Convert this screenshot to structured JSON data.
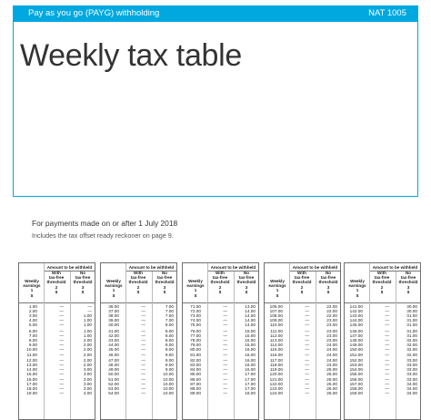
{
  "header": {
    "title": "Pay as you go (PAYG) withholding",
    "code": "NAT 1005"
  },
  "document": {
    "title": "Weekly tax table",
    "payments_note": "For payments made on or after 1 July 2018",
    "reckoner_note": "Includes the tax offset ready reckoner on page 9."
  },
  "table_header": {
    "amount_withheld": "Amount to be withheld",
    "col1": [
      "Weekly",
      "earnings",
      "1",
      "$"
    ],
    "col2": [
      "With",
      "tax-free",
      "threshold",
      "2",
      "$"
    ],
    "col3": [
      "No",
      "tax-free",
      "threshold",
      "3",
      "$"
    ]
  },
  "tables": [
    {
      "rows": [
        [
          "1.00",
          "—",
          "—"
        ],
        [
          "2.00",
          "—",
          "—"
        ],
        [
          "3.00",
          "—",
          "1.00"
        ],
        [
          "4.00",
          "—",
          "1.00"
        ],
        [
          "5.00",
          "—",
          "1.00"
        ],
        [
          "6.00",
          "—",
          "1.00"
        ],
        [
          "7.00",
          "—",
          "1.00"
        ],
        [
          "8.00",
          "—",
          "2.00"
        ],
        [
          "9.00",
          "—",
          "2.00"
        ],
        [
          "10.00",
          "—",
          "2.00"
        ],
        [
          "11.00",
          "—",
          "2.00"
        ],
        [
          "12.00",
          "—",
          "2.00"
        ],
        [
          "13.00",
          "—",
          "2.00"
        ],
        [
          "14.00",
          "—",
          "3.00"
        ],
        [
          "15.00",
          "—",
          "3.00"
        ],
        [
          "16.00",
          "—",
          "3.00"
        ],
        [
          "17.00",
          "—",
          "3.00"
        ],
        [
          "18.00",
          "—",
          "3.00"
        ],
        [
          "19.00",
          "—",
          "4.00"
        ]
      ]
    },
    {
      "rows": [
        [
          "36.00",
          "—",
          "7.00"
        ],
        [
          "37.00",
          "—",
          "7.00"
        ],
        [
          "38.00",
          "—",
          "7.00"
        ],
        [
          "39.00",
          "—",
          "7.00"
        ],
        [
          "40.00",
          "—",
          "8.00"
        ],
        [
          "41.00",
          "—",
          "8.00"
        ],
        [
          "42.00",
          "—",
          "8.00"
        ],
        [
          "43.00",
          "—",
          "8.00"
        ],
        [
          "44.00",
          "—",
          "8.00"
        ],
        [
          "45.00",
          "—",
          "9.00"
        ],
        [
          "46.00",
          "—",
          "9.00"
        ],
        [
          "47.00",
          "—",
          "9.00"
        ],
        [
          "48.00",
          "—",
          "9.00"
        ],
        [
          "49.00",
          "—",
          "9.00"
        ],
        [
          "50.00",
          "—",
          "10.00"
        ],
        [
          "51.00",
          "—",
          "10.00"
        ],
        [
          "52.00",
          "—",
          "10.00"
        ],
        [
          "53.00",
          "—",
          "10.00"
        ],
        [
          "54.00",
          "—",
          "10.00"
        ]
      ]
    },
    {
      "rows": [
        [
          "71.00",
          "—",
          "13.00"
        ],
        [
          "72.00",
          "—",
          "14.00"
        ],
        [
          "73.00",
          "—",
          "14.00"
        ],
        [
          "74.00",
          "—",
          "14.00"
        ],
        [
          "75.00",
          "—",
          "14.00"
        ],
        [
          "76.00",
          "—",
          "15.00"
        ],
        [
          "77.00",
          "—",
          "15.00"
        ],
        [
          "78.00",
          "—",
          "15.00"
        ],
        [
          "79.00",
          "—",
          "15.00"
        ],
        [
          "80.00",
          "—",
          "16.00"
        ],
        [
          "81.00",
          "—",
          "16.00"
        ],
        [
          "82.00",
          "—",
          "16.00"
        ],
        [
          "83.00",
          "—",
          "16.00"
        ],
        [
          "84.00",
          "—",
          "16.00"
        ],
        [
          "85.00",
          "—",
          "17.00"
        ],
        [
          "86.00",
          "—",
          "17.00"
        ],
        [
          "87.00",
          "—",
          "17.00"
        ],
        [
          "88.00",
          "—",
          "17.00"
        ],
        [
          "89.00",
          "—",
          "18.00"
        ]
      ]
    },
    {
      "rows": [
        [
          "106.00",
          "—",
          "22.00"
        ],
        [
          "107.00",
          "—",
          "22.00"
        ],
        [
          "108.00",
          "—",
          "22.00"
        ],
        [
          "109.00",
          "—",
          "23.00"
        ],
        [
          "110.00",
          "—",
          "23.00"
        ],
        [
          "111.00",
          "—",
          "23.00"
        ],
        [
          "112.00",
          "—",
          "23.00"
        ],
        [
          "113.00",
          "—",
          "23.00"
        ],
        [
          "114.00",
          "—",
          "24.00"
        ],
        [
          "115.00",
          "—",
          "24.00"
        ],
        [
          "116.00",
          "—",
          "24.00"
        ],
        [
          "117.00",
          "—",
          "24.00"
        ],
        [
          "118.00",
          "—",
          "24.00"
        ],
        [
          "119.00",
          "—",
          "25.00"
        ],
        [
          "120.00",
          "—",
          "25.00"
        ],
        [
          "121.00",
          "—",
          "25.00"
        ],
        [
          "122.00",
          "—",
          "25.00"
        ],
        [
          "123.00",
          "—",
          "26.00"
        ],
        [
          "124.00",
          "—",
          "26.00"
        ]
      ]
    },
    {
      "rows": [
        [
          "141.00",
          "—",
          "30.00"
        ],
        [
          "142.00",
          "—",
          "30.00"
        ],
        [
          "143.00",
          "—",
          "31.00"
        ],
        [
          "144.00",
          "—",
          "31.00"
        ],
        [
          "145.00",
          "—",
          "31.00"
        ],
        [
          "146.00",
          "—",
          "31.00"
        ],
        [
          "147.00",
          "—",
          "31.00"
        ],
        [
          "148.00",
          "—",
          "32.00"
        ],
        [
          "149.00",
          "—",
          "32.00"
        ],
        [
          "150.00",
          "—",
          "32.00"
        ],
        [
          "151.00",
          "—",
          "32.00"
        ],
        [
          "152.00",
          "—",
          "33.00"
        ],
        [
          "153.00",
          "—",
          "33.00"
        ],
        [
          "154.00",
          "—",
          "33.00"
        ],
        [
          "155.00",
          "—",
          "33.00"
        ],
        [
          "156.00",
          "—",
          "33.00"
        ],
        [
          "157.00",
          "—",
          "34.00"
        ],
        [
          "158.00",
          "—",
          "34.00"
        ],
        [
          "159.00",
          "—",
          "34.00"
        ]
      ]
    }
  ]
}
